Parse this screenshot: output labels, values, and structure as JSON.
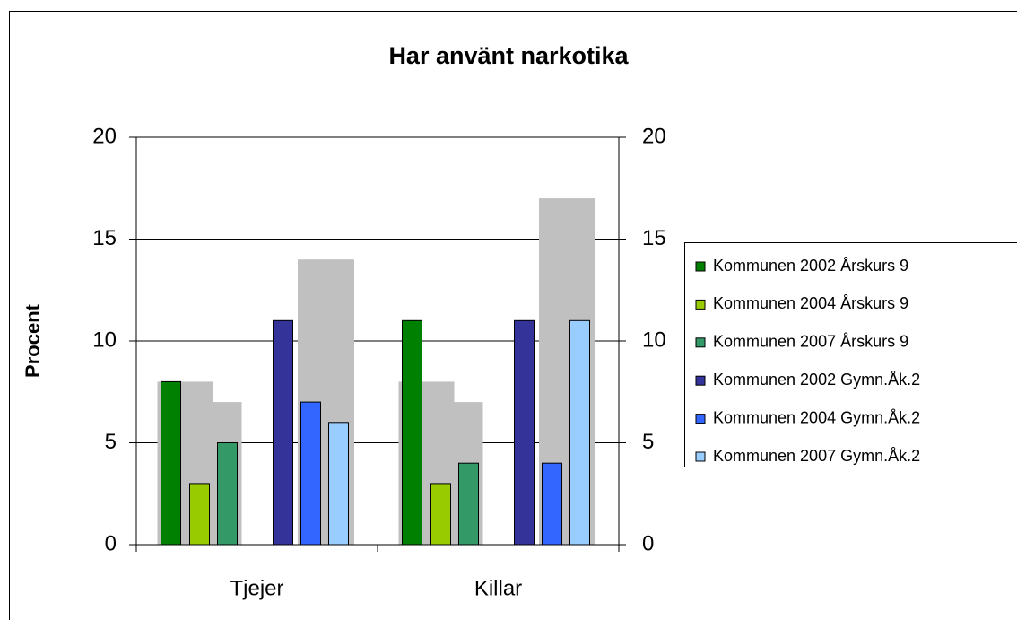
{
  "chart_data": {
    "type": "bar",
    "title": "Har använt narkotika",
    "y_label": "Procent",
    "categories": [
      "Tjejer",
      "Killar"
    ],
    "series": [
      {
        "name": "Kommunen 2002 Årskurs 9",
        "color": "#008000",
        "values": [
          8,
          11
        ]
      },
      {
        "name": "Kommunen 2004 Årskurs 9",
        "color": "#99cc00",
        "values": [
          3,
          3
        ]
      },
      {
        "name": "Kommunen 2007 Årskurs 9",
        "color": "#339966",
        "values": [
          5,
          4
        ]
      },
      {
        "name": "Kommunen 2002 Gymn.Åk.2",
        "color": "#333399",
        "values": [
          11,
          11
        ]
      },
      {
        "name": "Kommunen 2004 Gymn.Åk.2",
        "color": "#3366ff",
        "values": [
          7,
          4
        ]
      },
      {
        "name": "Kommunen 2007 Gymn.Åk.2",
        "color": "#99ccff",
        "values": [
          6,
          11
        ]
      },
      {
        "color": "#c0c0c0",
        "values": [
          8,
          8
        ],
        "axis": "y2"
      },
      {
        "color": "#c0c0c0",
        "values": [
          7,
          7
        ],
        "axis": "y2"
      },
      {
        "color": "#c0c0c0",
        "values": [
          14,
          17
        ],
        "axis": "y2"
      }
    ],
    "ylim": [
      0,
      20
    ],
    "yticks": [
      0,
      5,
      10,
      15,
      20
    ],
    "y2lim": [
      0,
      20
    ],
    "y2ticks": [
      0,
      5,
      10,
      15,
      20
    ],
    "grid": true,
    "legend": "right"
  }
}
